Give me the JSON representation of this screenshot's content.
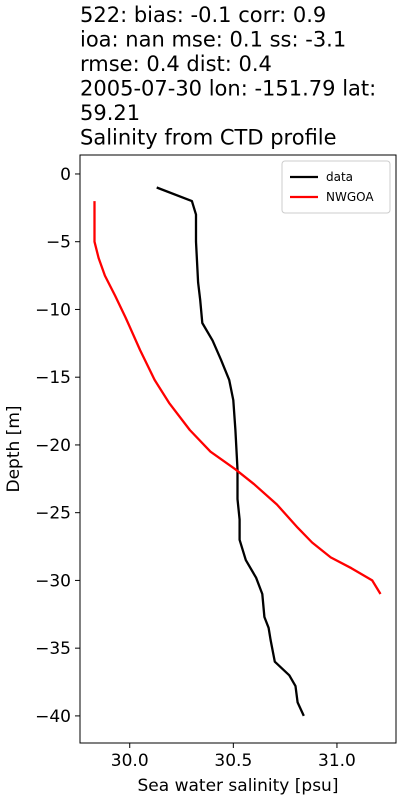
{
  "chart_data": {
    "type": "line",
    "title_lines": [
      "522: bias: -0.1  corr: 0.9",
      "ioa: nan  mse: 0.1  ss: -3.1",
      "rmse: 0.4  dist: 0.4",
      "2005-07-30 lon: -151.79 lat:",
      "59.21",
      "Salinity from CTD profile"
    ],
    "x_label": "Sea water salinity [psu]",
    "y_label": "Depth [m]",
    "xlim": [
      29.76,
      31.285
    ],
    "ylim": [
      -42,
      1.4
    ],
    "xticks": [
      {
        "value": 30,
        "label": "30.0"
      },
      30.5,
      {
        "value": 31,
        "label": "31.0"
      }
    ],
    "yticks": [
      0,
      {
        "value": -5,
        "label": "−5"
      },
      {
        "value": -10,
        "label": "−10"
      },
      {
        "value": -15,
        "label": "−15"
      },
      {
        "value": -20,
        "label": "−20"
      },
      {
        "value": -25,
        "label": "−25"
      },
      {
        "value": -30,
        "label": "−30"
      },
      {
        "value": -35,
        "label": "−35"
      },
      {
        "value": -40,
        "label": "−40"
      }
    ],
    "legend": "upper right",
    "series": [
      {
        "name": "data",
        "color": "#000000",
        "x": [
          30.13,
          30.3,
          30.32,
          30.32,
          30.33,
          30.34,
          30.35,
          30.4,
          30.44,
          30.48,
          30.5,
          30.51,
          30.52,
          30.52,
          30.53,
          30.53,
          30.56,
          30.61,
          30.64,
          30.65,
          30.67,
          30.68,
          30.7,
          30.77,
          30.8,
          30.81,
          30.84
        ],
        "y": [
          -1,
          -2,
          -3,
          -5,
          -8,
          -9.3,
          -11,
          -12.3,
          -13.7,
          -15.2,
          -16.7,
          -18.9,
          -21.8,
          -24,
          -25.5,
          -27,
          -28.5,
          -29.8,
          -31,
          -32.7,
          -33.5,
          -34.4,
          -36,
          -37,
          -37.8,
          -39,
          -40
        ]
      },
      {
        "name": "NWGOA",
        "color": "#ff0000",
        "x": [
          29.83,
          29.83,
          29.83,
          29.85,
          29.88,
          29.93,
          29.98,
          30.05,
          30.12,
          30.19,
          30.29,
          30.39,
          30.51,
          30.6,
          30.71,
          30.81,
          30.88,
          30.97,
          31.07,
          31.17,
          31.21
        ],
        "y": [
          -2,
          -3.8,
          -5,
          -6.2,
          -7.5,
          -9,
          -10.6,
          -13,
          -15.2,
          -16.9,
          -18.9,
          -20.5,
          -21.8,
          -22.9,
          -24.4,
          -26.1,
          -27.2,
          -28.3,
          -29.1,
          -30,
          -31
        ]
      }
    ]
  }
}
